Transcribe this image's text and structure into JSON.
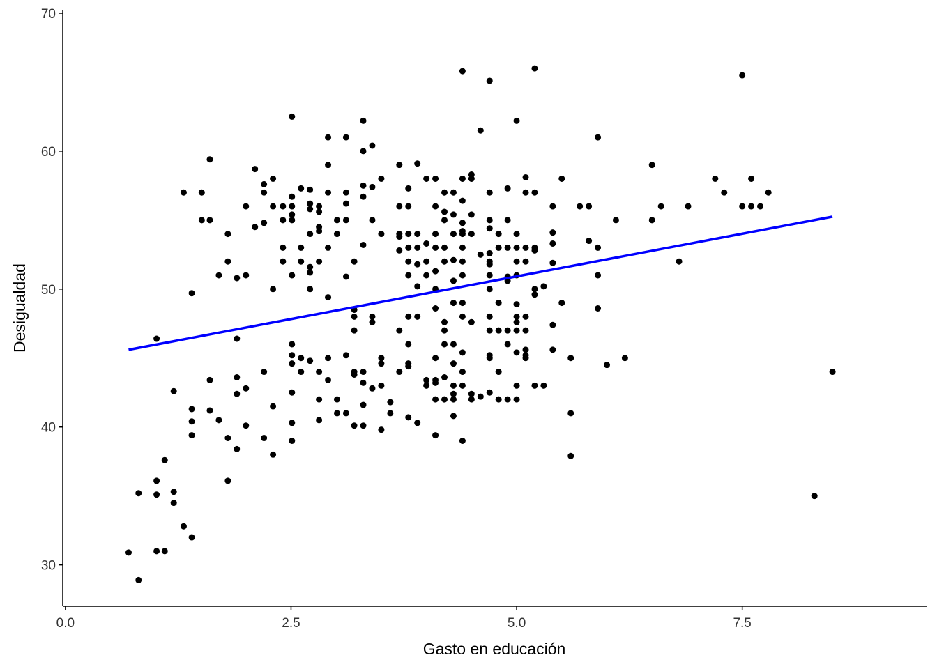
{
  "chart_data": {
    "type": "scatter",
    "x_label": "Gasto en educación",
    "y_label": "Desigualdad",
    "xlim": [
      -0.03,
      9.55
    ],
    "ylim": [
      27,
      70.2
    ],
    "xticks": [
      {
        "value": 0,
        "label": "0.0"
      },
      2.5,
      {
        "value": 5,
        "label": "5.0"
      },
      7.5
    ],
    "yticks": [
      30,
      40,
      50,
      60,
      70
    ],
    "color": "#000000",
    "x": [
      0.7,
      0.81,
      0.81,
      1.01,
      1.01,
      1.01,
      1.01,
      1.1,
      1.1,
      1.2,
      1.2,
      1.2,
      1.31,
      1.31,
      1.4,
      1.4,
      1.4,
      1.4,
      1.4,
      1.51,
      1.51,
      1.6,
      1.6,
      1.6,
      1.6,
      1.7,
      1.7,
      1.8,
      1.8,
      1.8,
      1.8,
      1.9,
      1.9,
      1.9,
      1.9,
      1.9,
      2.0,
      2.0,
      2.0,
      2.0,
      2.1,
      2.1,
      2.2,
      2.2,
      2.2,
      2.2,
      2.2,
      2.3,
      2.3,
      2.3,
      2.3,
      2.3,
      2.41,
      2.41,
      2.41,
      2.41,
      2.51,
      2.51,
      2.51,
      2.51,
      2.51,
      2.51,
      2.51,
      2.51,
      2.51,
      2.51,
      2.51,
      2.51,
      2.61,
      2.61,
      2.61,
      2.61,
      2.61,
      2.71,
      2.71,
      2.71,
      2.71,
      2.71,
      2.71,
      2.71,
      2.71,
      2.81,
      2.81,
      2.81,
      2.81,
      2.81,
      2.81,
      2.81,
      2.81,
      2.91,
      2.91,
      2.91,
      2.91,
      2.91,
      2.91,
      2.91,
      3.01,
      3.01,
      3.01,
      3.01,
      3.11,
      3.11,
      3.11,
      3.11,
      3.11,
      3.11,
      3.11,
      3.2,
      3.2,
      3.2,
      3.2,
      3.2,
      3.2,
      3.2,
      3.3,
      3.3,
      3.3,
      3.3,
      3.3,
      3.3,
      3.3,
      3.3,
      3.3,
      3.4,
      3.4,
      3.4,
      3.4,
      3.4,
      3.4,
      3.5,
      3.5,
      3.5,
      3.5,
      3.5,
      3.5,
      3.6,
      3.6,
      3.7,
      3.7,
      3.7,
      3.7,
      3.7,
      3.7,
      3.7,
      3.8,
      3.8,
      3.8,
      3.8,
      3.8,
      3.8,
      3.8,
      3.8,
      3.8,
      3.8,
      3.8,
      3.9,
      3.9,
      3.9,
      3.9,
      3.9,
      3.9,
      3.9,
      4.0,
      4.0,
      4.0,
      4.0,
      4.0,
      4.0,
      4.1,
      4.1,
      4.1,
      4.1,
      4.1,
      4.1,
      4.1,
      4.1,
      4.1,
      4.1,
      4.1,
      4.1,
      4.2,
      4.2,
      4.2,
      4.2,
      4.2,
      4.2,
      4.2,
      4.2,
      4.2,
      4.2,
      4.3,
      4.3,
      4.3,
      4.3,
      4.3,
      4.3,
      4.3,
      4.3,
      4.3,
      4.3,
      4.3,
      4.3,
      4.4,
      4.4,
      4.4,
      4.4,
      4.4,
      4.4,
      4.4,
      4.4,
      4.4,
      4.4,
      4.4,
      4.4,
      4.4,
      4.4,
      4.4,
      4.5,
      4.5,
      4.5,
      4.5,
      4.5,
      4.5,
      4.5,
      4.6,
      4.6,
      4.6,
      4.7,
      4.7,
      4.7,
      4.7,
      4.7,
      4.7,
      4.7,
      4.7,
      4.7,
      4.7,
      4.7,
      4.7,
      4.7,
      4.7,
      4.8,
      4.8,
      4.8,
      4.8,
      4.8,
      4.8,
      4.9,
      4.9,
      4.9,
      4.9,
      4.9,
      4.9,
      4.9,
      4.9,
      5.0,
      5.0,
      5.0,
      5.0,
      5.0,
      5.0,
      5.0,
      5.0,
      5.0,
      5.0,
      5.0,
      5.0,
      5.1,
      5.1,
      5.1,
      5.1,
      5.1,
      5.1,
      5.1,
      5.1,
      5.1,
      5.2,
      5.2,
      5.2,
      5.2,
      5.2,
      5.2,
      5.2,
      5.3,
      5.3,
      5.4,
      5.4,
      5.4,
      5.4,
      5.4,
      5.4,
      5.5,
      5.5,
      5.6,
      5.6,
      5.6,
      5.7,
      5.8,
      5.8,
      5.9,
      5.9,
      5.9,
      5.9,
      6.0,
      6.1,
      6.2,
      6.5,
      6.5,
      6.6,
      6.8,
      6.9,
      7.2,
      7.3,
      7.5,
      7.5,
      7.6,
      7.6,
      7.7,
      7.79,
      8.3,
      8.5
    ],
    "values": [
      30.9,
      28.9,
      35.2,
      36.1,
      35.1,
      31.0,
      46.4,
      31.0,
      37.6,
      42.6,
      35.3,
      34.5,
      32.8,
      57.0,
      32.0,
      49.7,
      41.3,
      40.4,
      39.4,
      57.0,
      55.0,
      59.4,
      55.0,
      43.4,
      41.2,
      51.0,
      40.5,
      54.0,
      52.0,
      39.2,
      36.1,
      50.8,
      46.4,
      43.6,
      42.4,
      38.4,
      56.0,
      51.0,
      42.8,
      40.1,
      58.7,
      54.5,
      57.6,
      57.0,
      54.8,
      44.0,
      39.2,
      58.0,
      56.0,
      50.0,
      41.5,
      38.0,
      56.0,
      55.0,
      53.0,
      52.0,
      62.5,
      56.7,
      56.0,
      55.4,
      55.0,
      51.0,
      46.0,
      45.2,
      44.6,
      42.5,
      40.3,
      39.0,
      57.3,
      53.0,
      52.0,
      45.0,
      44.0,
      57.2,
      56.2,
      55.8,
      54.0,
      51.6,
      51.2,
      50.0,
      44.8,
      56.0,
      55.6,
      54.5,
      54.2,
      52.0,
      44.0,
      42.0,
      40.5,
      61.0,
      59.0,
      57.0,
      53.0,
      49.4,
      45.0,
      43.4,
      55.0,
      54.0,
      42.0,
      41.0,
      61.0,
      57.0,
      56.2,
      55.0,
      50.9,
      45.2,
      41.0,
      52.0,
      48.5,
      48.0,
      47.0,
      44.0,
      43.8,
      40.1,
      62.2,
      60.0,
      57.5,
      56.7,
      53.2,
      44.0,
      43.2,
      41.6,
      40.1,
      60.4,
      57.4,
      55.0,
      48.0,
      47.6,
      42.8,
      58.0,
      54.0,
      45.0,
      44.6,
      43.0,
      39.8,
      41.8,
      41.0,
      59.0,
      56.0,
      54.0,
      53.8,
      52.8,
      47.0,
      44.0,
      57.3,
      56.0,
      54.0,
      53.0,
      52.0,
      51.0,
      46.0,
      44.6,
      44.4,
      48.0,
      40.7,
      59.1,
      54.0,
      53.0,
      51.8,
      50.2,
      48.0,
      40.3,
      58.0,
      53.3,
      52.0,
      51.0,
      43.4,
      43.0,
      58.0,
      56.0,
      54.0,
      53.0,
      51.3,
      50.0,
      48.6,
      45.0,
      43.4,
      43.2,
      42.0,
      39.4,
      57.0,
      55.6,
      55.0,
      53.0,
      52.0,
      47.6,
      47.0,
      46.0,
      43.6,
      42.0,
      57.0,
      55.4,
      54.0,
      52.1,
      50.6,
      49.0,
      46.0,
      44.6,
      43.0,
      42.4,
      42.0,
      40.8,
      65.8,
      58.0,
      56.4,
      54.8,
      54.2,
      54.0,
      53.0,
      52.0,
      51.0,
      49.0,
      48.0,
      45.4,
      44.0,
      43.0,
      39.0,
      58.3,
      58.0,
      55.4,
      54.0,
      47.6,
      42.4,
      42.0,
      61.5,
      52.5,
      42.2,
      65.1,
      57.0,
      55.0,
      54.4,
      52.6,
      52.0,
      51.8,
      51.0,
      50.0,
      48.0,
      47.0,
      45.2,
      45.0,
      42.5,
      54.0,
      53.0,
      49.0,
      47.0,
      44.0,
      42.0,
      57.3,
      55.0,
      53.0,
      50.9,
      50.6,
      47.0,
      46.0,
      42.0,
      62.2,
      54.0,
      53.0,
      52.0,
      51.0,
      48.9,
      48.0,
      47.6,
      47.0,
      45.4,
      43.0,
      42.0,
      58.1,
      57.0,
      53.0,
      52.0,
      48.0,
      47.0,
      45.6,
      45.2,
      45.0,
      66.0,
      57.0,
      53.0,
      52.8,
      50.0,
      49.6,
      43.0,
      50.2,
      43.0,
      56.0,
      54.1,
      53.3,
      51.9,
      47.4,
      45.6,
      58.0,
      49.0,
      45.0,
      41.0,
      37.9,
      56.0,
      56.0,
      53.5,
      61.0,
      53.0,
      51.0,
      48.6,
      44.5,
      55.0,
      45.0,
      59.0,
      55.0,
      56.0,
      52.0,
      56.0,
      58.0,
      57.0,
      65.5,
      56.0,
      58.0,
      56.0,
      56.0,
      57.0,
      35.0,
      44.0
    ],
    "fit": {
      "color": "#0000ff",
      "x": [
        0.7,
        8.5
      ],
      "values": [
        45.6,
        55.25
      ]
    }
  }
}
